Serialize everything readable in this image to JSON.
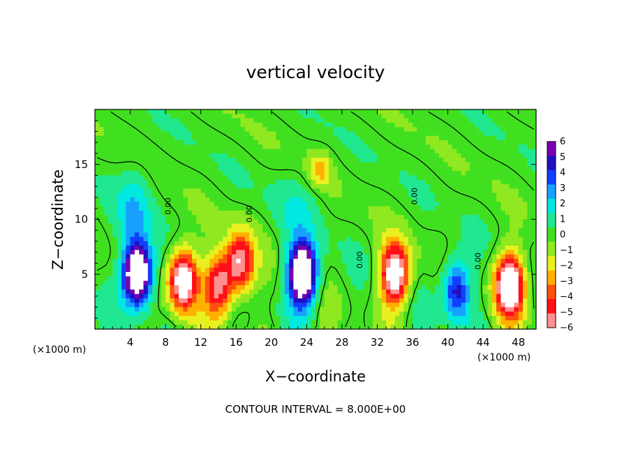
{
  "chart_data": {
    "type": "heatmap",
    "title": "vertical velocity",
    "xlabel": "X−coordinate",
    "ylabel": "Z−coordinate",
    "x_unit_left": "(×1000 m)",
    "x_unit_right": "(×1000 m)",
    "footer": "CONTOUR INTERVAL = 8.000E+00",
    "contour_label": "0.00",
    "xlim": [
      0,
      50
    ],
    "ylim": [
      0,
      20
    ],
    "xticks": [
      4,
      8,
      12,
      16,
      20,
      24,
      28,
      32,
      36,
      40,
      44,
      48
    ],
    "yticks": [
      5,
      10,
      15
    ],
    "colorbar": {
      "ticks": [
        "6",
        "5",
        "4",
        "3",
        "2",
        "1",
        "0",
        "−1",
        "−2",
        "−3",
        "−4",
        "−5",
        "−6"
      ],
      "min": -6,
      "max": 6,
      "colors": [
        "#7a00b0",
        "#2010c0",
        "#1040ff",
        "#18a0ff",
        "#00e8e0",
        "#20e890",
        "#40e020",
        "#90e820",
        "#e8f020",
        "#ffb000",
        "#ff5010",
        "#ff1018",
        "#ff9090"
      ]
    },
    "cells_note": "velocity field sampled from the image on an x-z grid",
    "features": [
      {
        "name": "updraft-1",
        "x": 4.8,
        "z": 5.0,
        "peak": 10
      },
      {
        "name": "downdraft-1",
        "x": 10.0,
        "z": 4.5,
        "peak": -8
      },
      {
        "name": "downdraft-2",
        "x": 14.0,
        "z": 4.0,
        "peak": -6
      },
      {
        "name": "downdraft-3",
        "x": 16.5,
        "z": 6.0,
        "peak": -6
      },
      {
        "name": "updraft-2",
        "x": 23.5,
        "z": 5.0,
        "peak": 10
      },
      {
        "name": "downdraft-4",
        "x": 34.0,
        "z": 5.0,
        "peak": -8
      },
      {
        "name": "updraft-3",
        "x": 41.0,
        "z": 3.5,
        "peak": 5
      },
      {
        "name": "downdraft-5",
        "x": 47.0,
        "z": 4.0,
        "peak": -9
      }
    ]
  }
}
